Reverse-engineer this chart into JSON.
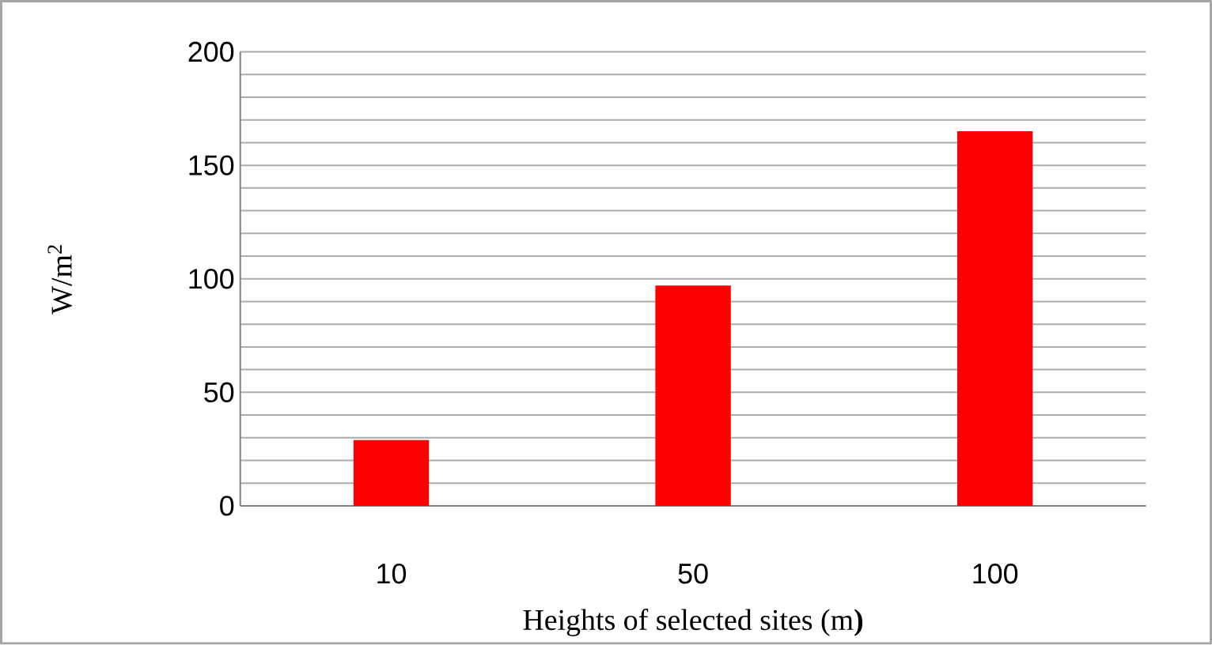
{
  "chart_data": {
    "type": "bar",
    "xlabel": "Heights of selected sites (m**)**",
    "ylabel": "W/m$^{2}$",
    "categories": [
      "10",
      "50",
      "100"
    ],
    "values": [
      29,
      97,
      165
    ],
    "color": "#ff0000",
    "ylim": [
      0,
      200
    ],
    "yticks": [
      0,
      {
        "value": 10,
        "label": null
      },
      {
        "value": 20,
        "label": null
      },
      {
        "value": 30,
        "label": null
      },
      {
        "value": 40,
        "label": null
      },
      50,
      {
        "value": 60,
        "label": null
      },
      {
        "value": 70,
        "label": null
      },
      {
        "value": 80,
        "label": null
      },
      {
        "value": 90,
        "label": null
      },
      100,
      {
        "value": 110,
        "label": null
      },
      {
        "value": 120,
        "label": null
      },
      {
        "value": 130,
        "label": null
      },
      {
        "value": 140,
        "label": null
      },
      150,
      {
        "value": 160,
        "label": null
      },
      {
        "value": 170,
        "label": null
      },
      {
        "value": 180,
        "label": null
      },
      {
        "value": 190,
        "label": null
      },
      200
    ],
    "grid": "y"
  }
}
